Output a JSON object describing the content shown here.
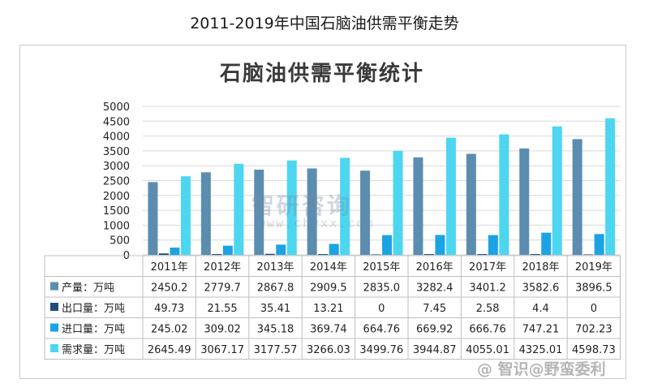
{
  "page_title": "2011-2019年中国石脑油供需平衡走势",
  "watermark": {
    "brand": "智研咨询",
    "url": "www.chyxx.com"
  },
  "corner_mark": "@ 智识@野蛮委利",
  "colors": {
    "production": "#5b8db0",
    "export": "#1f4e79",
    "import": "#1ca3e4",
    "demand": "#4dd6f0",
    "grid": "#d9d9d9",
    "axis_text": "#222222"
  },
  "chart_data": {
    "type": "bar",
    "title": "石脑油供需平衡统计",
    "categories": [
      "2011年",
      "2012年",
      "2013年",
      "2014年",
      "2015年",
      "2016年",
      "2017年",
      "2018年",
      "2019年"
    ],
    "ylim": [
      0,
      5000
    ],
    "yticks": [
      0,
      500,
      1000,
      1500,
      2000,
      2500,
      3000,
      3500,
      4000,
      4500,
      5000
    ],
    "grid": true,
    "legend": "data-table",
    "series": [
      {
        "name": "产量：万吨",
        "key": "production",
        "values": [
          2450.2,
          2779.7,
          2867.8,
          2909.5,
          2835.0,
          3282.4,
          3401.2,
          3582.6,
          3896.5
        ],
        "labels": [
          "2450.2",
          "2779.7",
          "2867.8",
          "2909.5",
          "2835.0",
          "3282.4",
          "3401.2",
          "3582.6",
          "3896.5"
        ]
      },
      {
        "name": "出口量：万吨",
        "key": "export",
        "values": [
          49.73,
          21.55,
          35.41,
          13.21,
          0,
          7.45,
          2.58,
          4.4,
          0
        ],
        "labels": [
          "49.73",
          "21.55",
          "35.41",
          "13.21",
          "0",
          "7.45",
          "2.58",
          "4.4",
          "0"
        ]
      },
      {
        "name": "进口量：万吨",
        "key": "import",
        "values": [
          245.02,
          309.02,
          345.18,
          369.74,
          664.76,
          669.92,
          666.76,
          747.21,
          702.23
        ],
        "labels": [
          "245.02",
          "309.02",
          "345.18",
          "369.74",
          "664.76",
          "669.92",
          "666.76",
          "747.21",
          "702.23"
        ]
      },
      {
        "name": "需求量：万吨",
        "key": "demand",
        "values": [
          2645.49,
          3067.17,
          3177.57,
          3266.03,
          3499.76,
          3944.87,
          4055.01,
          4325.01,
          4598.73
        ],
        "labels": [
          "2645.49",
          "3067.17",
          "3177.57",
          "3266.03",
          "3499.76",
          "3944.87",
          "4055.01",
          "4325.01",
          "4598.73"
        ]
      }
    ]
  }
}
